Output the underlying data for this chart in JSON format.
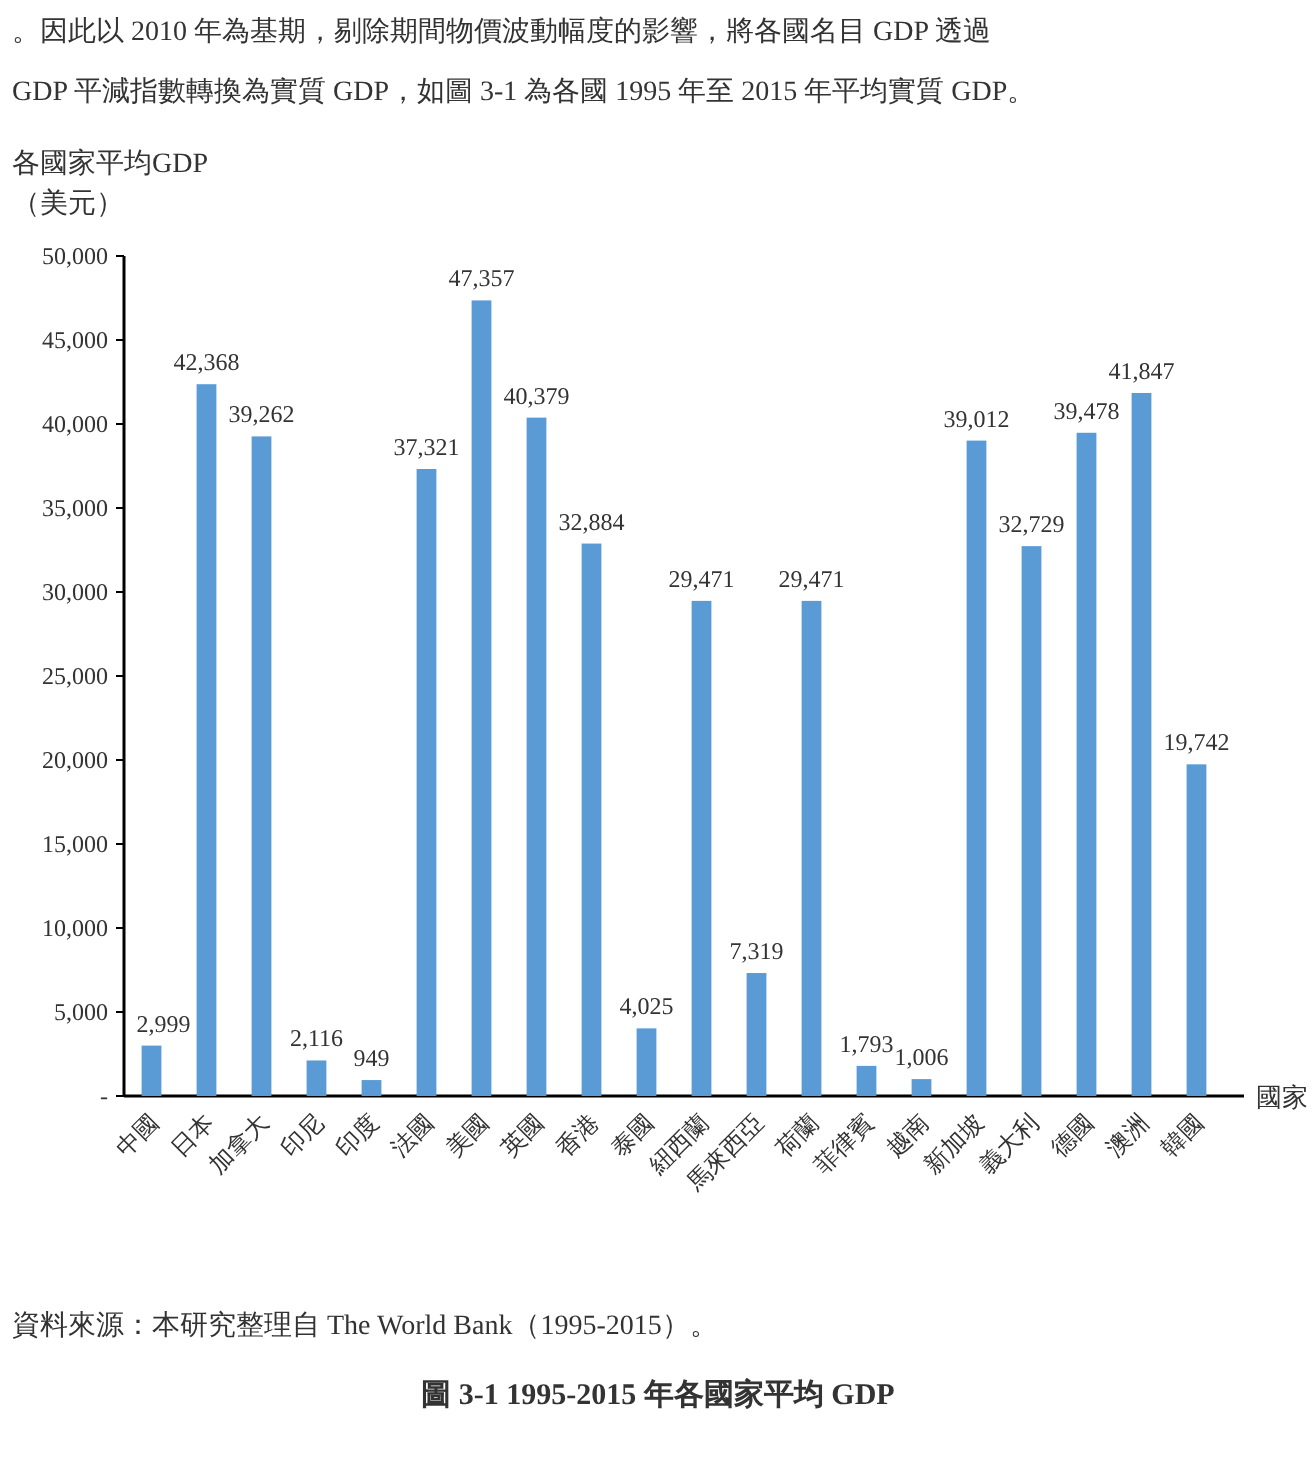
{
  "chart_data": {
    "type": "bar",
    "title": "圖 3-1 1995-2015 年各國家平均 GDP",
    "annotations": [
      "。因此以 2010 年為基期，剔除期間物價波動幅度的影響，將各國名目 GDP 透過",
      "GDP 平減指數轉換為實質 GDP，如圖 3-1 為各國 1995 年至 2015 年平均實質 GDP。",
      "資料來源：本研究整理自 The World Bank（1995-2015）。"
    ],
    "ylabel": "各國家平均GDP\n（美元）",
    "xlabel": "國家",
    "categories": [
      "中國",
      "日本",
      "加拿大",
      "印尼",
      "印度",
      "法國",
      "美國",
      "英國",
      "香港",
      "泰國",
      "紐西蘭",
      "馬來西亞",
      "荷蘭",
      "菲律賓",
      "越南",
      "新加坡",
      "義大利",
      "德國",
      "澳洲",
      "韓國"
    ],
    "values": [
      2999,
      42368,
      39262,
      2116,
      949,
      37321,
      47357,
      40379,
      32884,
      4025,
      29471,
      7319,
      29471,
      1793,
      1006,
      39012,
      32729,
      39478,
      41847,
      19742
    ],
    "color": "#5b9bd5",
    "ylim": [
      0,
      50000
    ],
    "yticks": [
      {
        "value": 0,
        "label": "-"
      },
      {
        "value": 5000,
        "label": "5,000"
      },
      {
        "value": 10000,
        "label": "10,000"
      },
      {
        "value": 15000,
        "label": "15,000"
      },
      {
        "value": 20000,
        "label": "20,000"
      },
      {
        "value": 25000,
        "label": "25,000"
      },
      {
        "value": 30000,
        "label": "30,000"
      },
      {
        "value": 35000,
        "label": "35,000"
      },
      {
        "value": 40000,
        "label": "40,000"
      },
      {
        "value": 45000,
        "label": "45,000"
      },
      {
        "value": 50000,
        "label": "50,000"
      }
    ],
    "value_labels": [
      "2,999",
      "42,368",
      "39,262",
      "2,116",
      "949",
      "37,321",
      "47,357",
      "40,379",
      "32,884",
      "4,025",
      "29,471",
      "7,319",
      "29,471",
      "1,793",
      "1,006",
      "39,012",
      "32,729",
      "39,478",
      "41,847",
      "19,742"
    ]
  }
}
